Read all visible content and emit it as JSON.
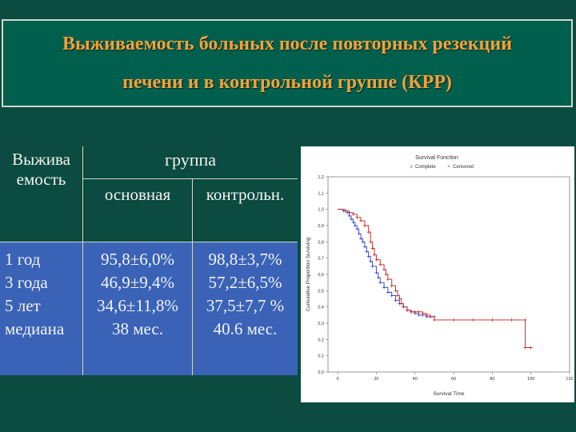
{
  "title": {
    "line1": "Выживаемость больных после повторных резекций",
    "line2": "печени и в контрольной группе (КРР)"
  },
  "table": {
    "header_left": [
      "Выжива",
      "емость"
    ],
    "header_group": "группа",
    "col1_label": "основная",
    "col2_label": "контрольн.",
    "rows": [
      {
        "label": "1 год",
        "col1": "95,8±6,0%",
        "col2": "98,8±3,7%"
      },
      {
        "label": "3 года",
        "col1": "46,9±9,4%",
        "col2": "57,2±6,5%"
      },
      {
        "label": "5 лет",
        "col1": "34,6±11,8%",
        "col2": "37,5±7,7 %"
      },
      {
        "label": "медиана",
        "col1": "38 мес.",
        "col2": "40.6 мес."
      }
    ]
  },
  "colors": {
    "background": "#0b4b40",
    "title_box": "#005f4d",
    "title_text": "#f2a23a",
    "table_body": "#3a63b7",
    "blue_curve": "#2a3dc8",
    "red_curve": "#c81e1e"
  },
  "chart_data": {
    "type": "line",
    "title": "Survival Function",
    "legend": [
      "Complete",
      "Censored"
    ],
    "legend_placement": "top",
    "xlabel": "Survival Time",
    "ylabel": "Cumulative Proportion Surviving",
    "xlim": [
      -5,
      120
    ],
    "ylim": [
      0.0,
      1.2
    ],
    "x_ticks": [
      "0",
      "20",
      "40",
      "60",
      "80",
      "100",
      "120"
    ],
    "y_ticks": [
      "0,0",
      "0,1",
      "0,2",
      "0,3",
      "0,4",
      "0,5",
      "0,6",
      "0,7",
      "0,8",
      "0,9",
      "1,0",
      "1,1",
      "1,2"
    ],
    "series": [
      {
        "color": "#2a3dc8",
        "x": [
          0,
          3,
          5,
          6,
          7,
          8,
          9,
          10,
          11,
          12,
          13,
          14,
          15,
          16,
          17,
          18,
          20,
          21,
          22,
          24,
          26,
          28,
          30,
          32,
          34,
          36,
          38,
          40,
          42,
          44,
          46,
          48,
          50
        ],
        "y": [
          1.0,
          0.99,
          0.98,
          0.96,
          0.94,
          0.92,
          0.9,
          0.88,
          0.85,
          0.82,
          0.8,
          0.77,
          0.74,
          0.71,
          0.68,
          0.65,
          0.61,
          0.58,
          0.55,
          0.52,
          0.49,
          0.47,
          0.44,
          0.42,
          0.4,
          0.38,
          0.37,
          0.36,
          0.35,
          0.35,
          0.34,
          0.34,
          0.34
        ]
      },
      {
        "color": "#c81e1e",
        "x": [
          0,
          4,
          6,
          8,
          10,
          12,
          14,
          16,
          17,
          18,
          19,
          20,
          22,
          24,
          25,
          26,
          28,
          30,
          31,
          32,
          33,
          34,
          36,
          38,
          40,
          42,
          44,
          46,
          48,
          50,
          60,
          70,
          80,
          90,
          97,
          97,
          100
        ],
        "y": [
          1.0,
          0.99,
          0.98,
          0.97,
          0.95,
          0.93,
          0.9,
          0.86,
          0.8,
          0.76,
          0.72,
          0.69,
          0.66,
          0.63,
          0.6,
          0.57,
          0.53,
          0.5,
          0.47,
          0.45,
          0.42,
          0.4,
          0.38,
          0.37,
          0.37,
          0.37,
          0.36,
          0.35,
          0.34,
          0.32,
          0.32,
          0.32,
          0.32,
          0.32,
          0.32,
          0.15,
          0.15
        ]
      }
    ]
  }
}
